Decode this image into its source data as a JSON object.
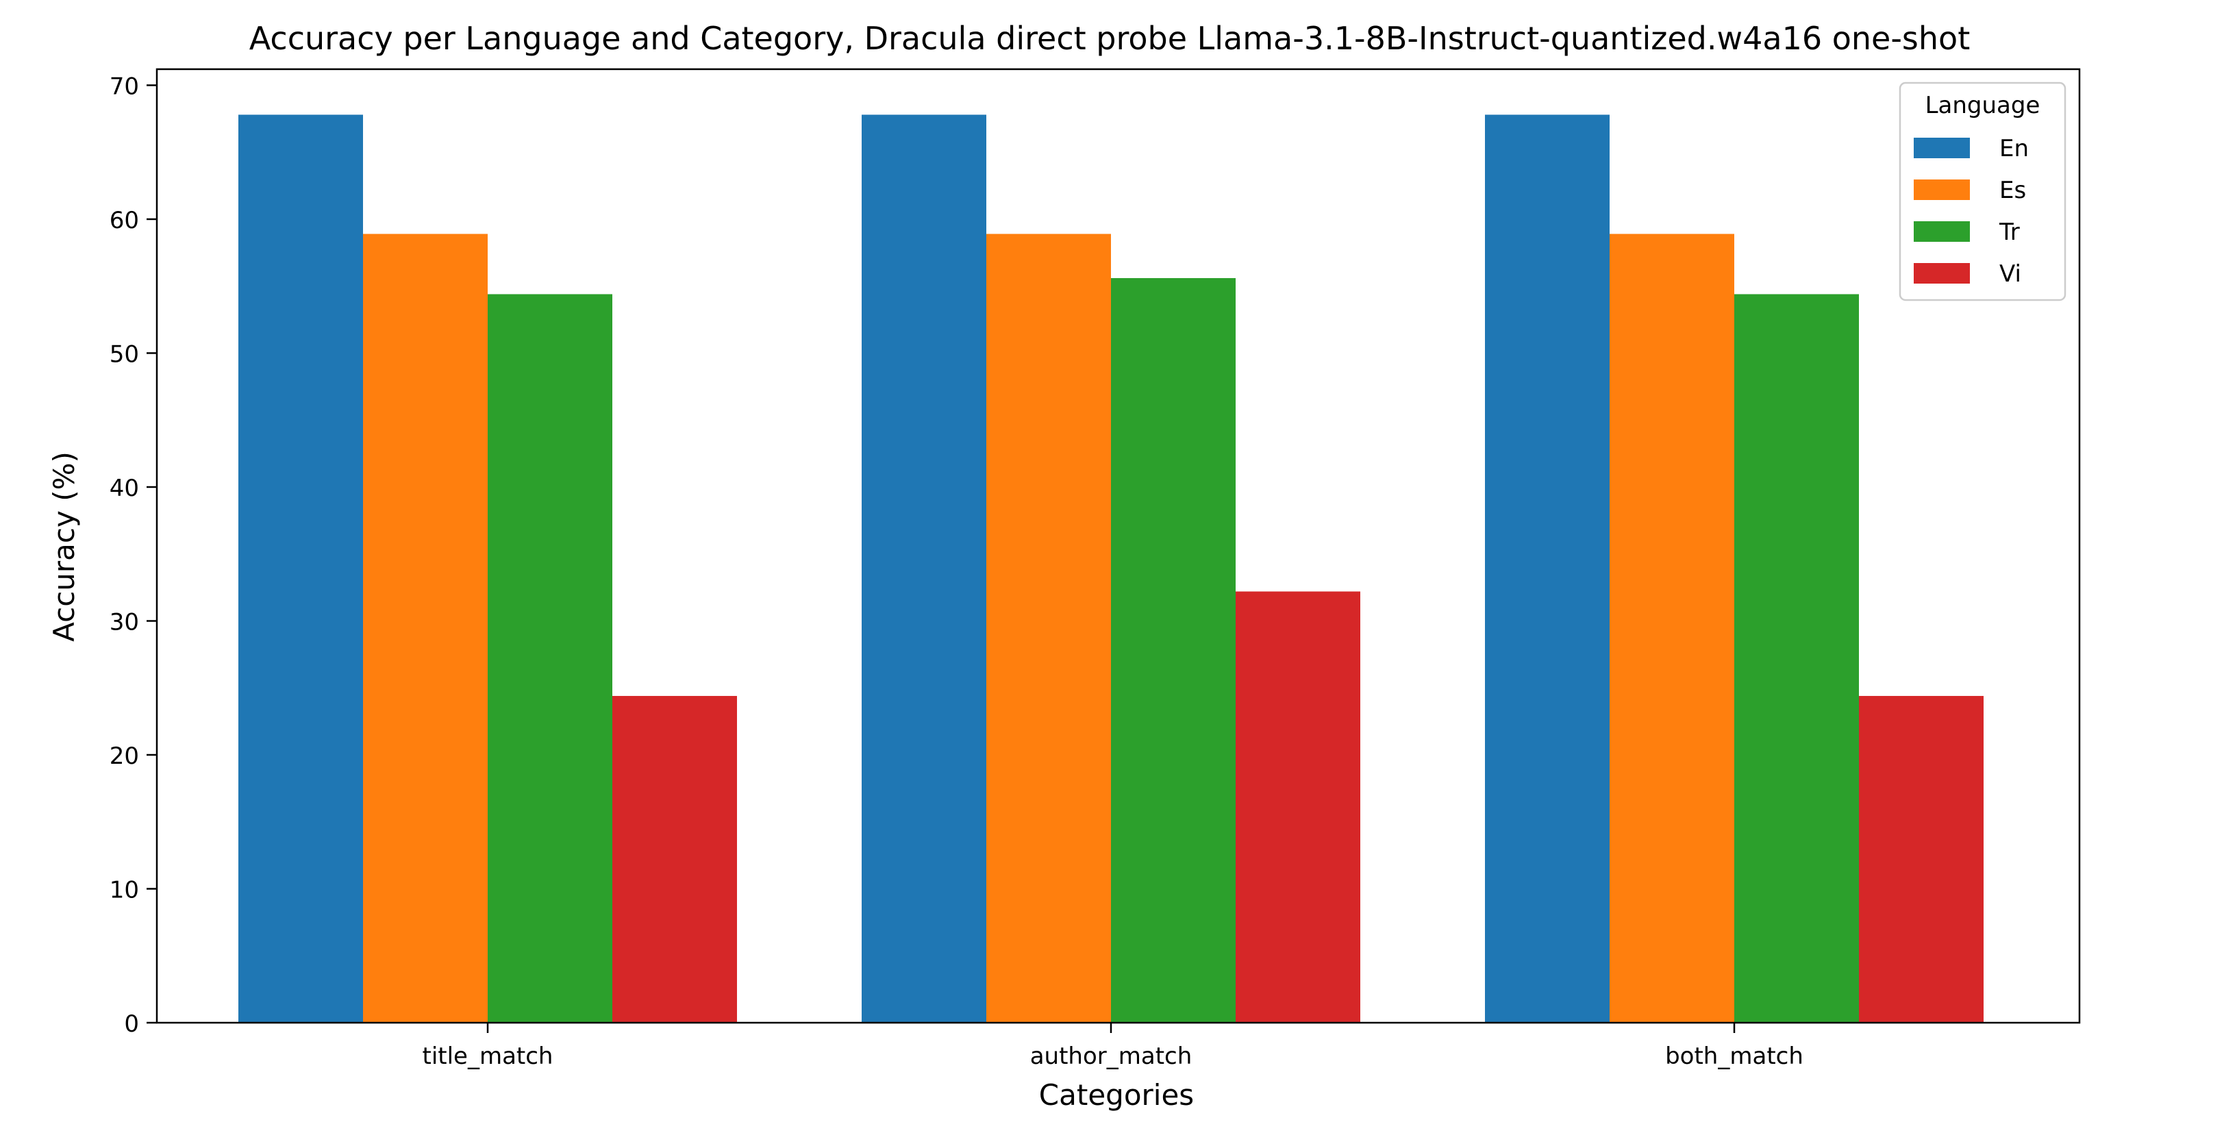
{
  "chart_data": {
    "type": "bar",
    "title": "Accuracy per Language and Category, Dracula direct probe Llama-3.1-8B-Instruct-quantized.w4a16 one-shot",
    "xlabel": "Categories",
    "ylabel": "Accuracy (%)",
    "ylim": [
      0,
      71.2
    ],
    "yticks": [
      0,
      10,
      20,
      30,
      40,
      50,
      60,
      70
    ],
    "grid": false,
    "categories": [
      "title_match",
      "author_match",
      "both_match"
    ],
    "legend": {
      "title": "Language",
      "placement": "top-right"
    },
    "series": [
      {
        "name": "En",
        "color": "#1f77b4",
        "values": [
          67.8,
          67.8,
          67.8
        ]
      },
      {
        "name": "Es",
        "color": "#ff7f0e",
        "values": [
          58.9,
          58.9,
          58.9
        ]
      },
      {
        "name": "Tr",
        "color": "#2ca02c",
        "values": [
          54.4,
          55.6,
          54.4
        ]
      },
      {
        "name": "Vi",
        "color": "#d62728",
        "values": [
          24.4,
          32.2,
          24.4
        ]
      }
    ]
  }
}
